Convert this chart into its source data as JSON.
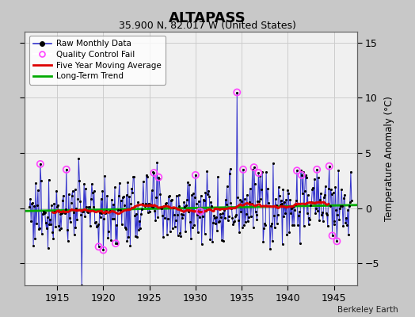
{
  "title": "ALTAPASS",
  "subtitle": "35.900 N, 82.017 W (United States)",
  "ylabel": "Temperature Anomaly (°C)",
  "credit": "Berkeley Earth",
  "xlim": [
    1911.5,
    1947.5
  ],
  "ylim": [
    -7,
    16
  ],
  "yticks": [
    -5,
    0,
    5,
    10,
    15
  ],
  "xticks": [
    1915,
    1920,
    1925,
    1930,
    1935,
    1940,
    1945
  ],
  "fig_bg": "#c8c8c8",
  "plot_bg": "#f0f0f0",
  "raw_color": "#3333cc",
  "raw_dot_color": "#000000",
  "qc_color": "#ff44ff",
  "moving_avg_color": "#dd0000",
  "trend_color": "#00aa00",
  "raw_lw": 0.7,
  "raw_dot_size": 5,
  "moving_avg_lw": 2.0,
  "trend_lw": 2.0,
  "grid_color": "#cccccc"
}
